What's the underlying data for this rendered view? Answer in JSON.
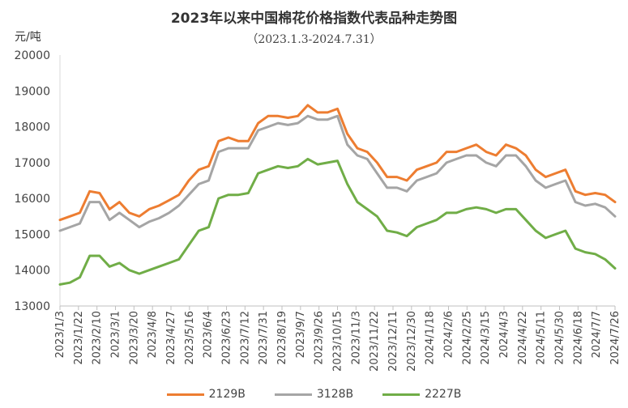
{
  "chart_data": {
    "type": "line",
    "title": "2023年以来中国棉花价格指数代表品种走势图",
    "subtitle": "（2023.1.3-2024.7.31）",
    "ylabel": "元/吨",
    "ylim": [
      13000,
      20000
    ],
    "yticks": [
      13000,
      14000,
      15000,
      16000,
      17000,
      18000,
      19000,
      20000
    ],
    "xtick_labels": [
      "2023/1/3",
      "2023/1/22",
      "2023/2/10",
      "2023/3/1",
      "2023/3/20",
      "2023/4/8",
      "2023/4/27",
      "2023/5/16",
      "2023/6/4",
      "2023/6/23",
      "2023/7/12",
      "2023/7/31",
      "2023/8/19",
      "2023/9/7",
      "2023/9/26",
      "2023/10/15",
      "2023/11/3",
      "2023/11/22",
      "2023/12/11",
      "2023/12/30",
      "2024/1/18",
      "2024/2/6",
      "2024/2/25",
      "2024/3/15",
      "2024/4/3",
      "2024/4/22",
      "2024/5/11",
      "2024/5/30",
      "2024/6/18",
      "2024/7/7",
      "2024/7/26"
    ],
    "grid": false,
    "legend_position": "bottom",
    "series": [
      {
        "name": "2129B",
        "color": "#ED7D31",
        "values": [
          15400,
          15500,
          15600,
          16200,
          16150,
          15700,
          15900,
          15600,
          15500,
          15700,
          15800,
          15950,
          16100,
          16500,
          16800,
          16900,
          17600,
          17700,
          17600,
          17600,
          18100,
          18300,
          18300,
          18250,
          18300,
          18600,
          18400,
          18400,
          18500,
          17800,
          17400,
          17300,
          17000,
          16600,
          16600,
          16500,
          16800,
          16900,
          17000,
          17300,
          17300,
          17400,
          17500,
          17300,
          17200,
          17500,
          17400,
          17200,
          16800,
          16600,
          16700,
          16800,
          16200,
          16100,
          16150,
          16100,
          15900
        ]
      },
      {
        "name": "3128B",
        "color": "#A5A5A5",
        "values": [
          15100,
          15200,
          15300,
          15900,
          15900,
          15400,
          15600,
          15400,
          15200,
          15350,
          15450,
          15600,
          15800,
          16100,
          16400,
          16500,
          17300,
          17400,
          17400,
          17400,
          17900,
          18000,
          18100,
          18050,
          18100,
          18300,
          18200,
          18200,
          18300,
          17500,
          17200,
          17100,
          16700,
          16300,
          16300,
          16200,
          16500,
          16600,
          16700,
          17000,
          17100,
          17200,
          17200,
          17000,
          16900,
          17200,
          17200,
          16900,
          16500,
          16300,
          16400,
          16500,
          15900,
          15800,
          15850,
          15750,
          15500
        ]
      },
      {
        "name": "2227B",
        "color": "#70AD47",
        "values": [
          13600,
          13650,
          13800,
          14400,
          14400,
          14100,
          14200,
          14000,
          13900,
          14000,
          14100,
          14200,
          14300,
          14700,
          15100,
          15200,
          16000,
          16100,
          16100,
          16150,
          16700,
          16800,
          16900,
          16850,
          16900,
          17100,
          16950,
          17000,
          17050,
          16400,
          15900,
          15700,
          15500,
          15100,
          15050,
          14950,
          15200,
          15300,
          15400,
          15600,
          15600,
          15700,
          15750,
          15700,
          15600,
          15700,
          15700,
          15400,
          15100,
          14900,
          15000,
          15100,
          14600,
          14500,
          14450,
          14300,
          14050
        ]
      }
    ]
  },
  "legend": {
    "item0": "2129B",
    "item1": "3128B",
    "item2": "2227B"
  }
}
